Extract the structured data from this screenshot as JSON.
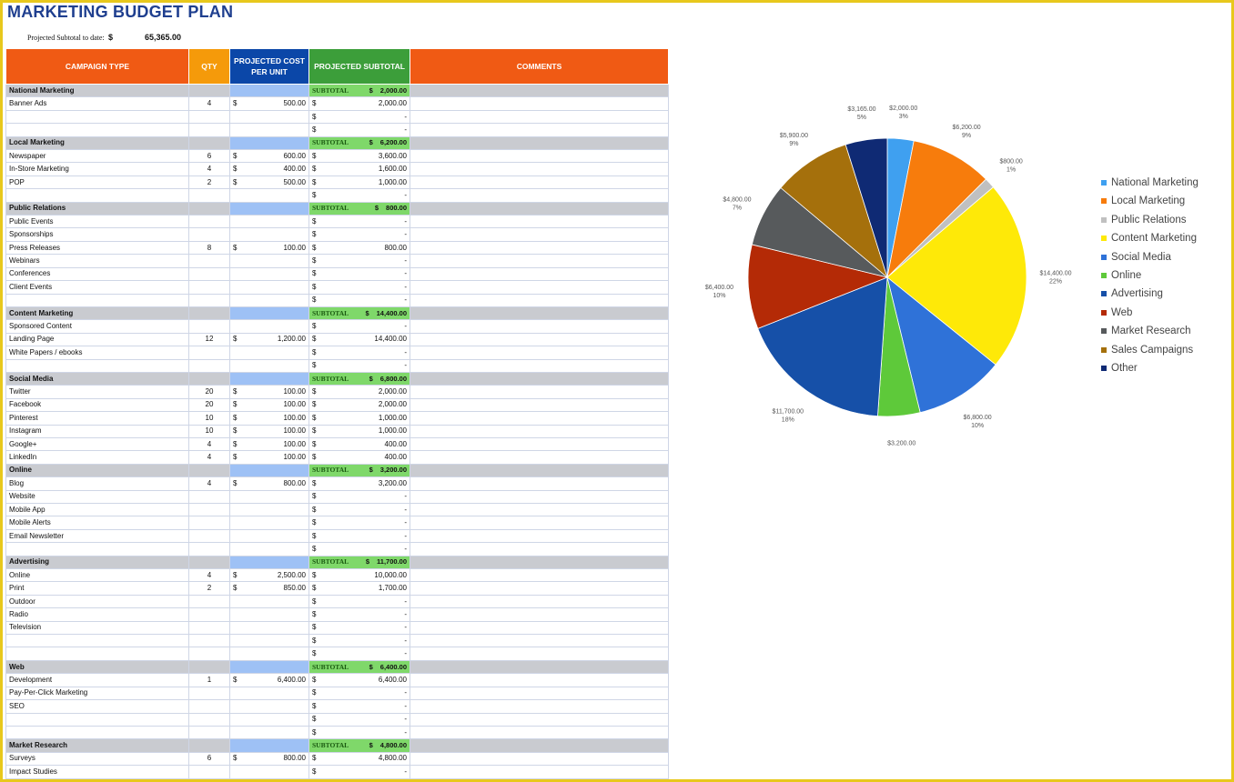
{
  "title": "MARKETING BUDGET PLAN",
  "subtotal_label": "Projected Subtotal to date:",
  "subtotal_dollar": "$",
  "subtotal_value": "65,365.00",
  "headers": {
    "campaign_type": "CAMPAIGN TYPE",
    "qty": "QTY",
    "cost_per_unit": "PROJECTED COST PER UNIT",
    "subtotal": "PROJECTED SUBTOTAL",
    "comments": "COMMENTS"
  },
  "subtotal_tag": "SUBTOTAL",
  "categories": [
    {
      "name": "National Marketing",
      "subtotal": "2,000.00",
      "rows": [
        {
          "item": "Banner Ads",
          "qty": "4",
          "cost": "500.00",
          "total": "2,000.00"
        },
        {
          "item": "",
          "qty": "",
          "cost": "",
          "total": "-"
        },
        {
          "item": "",
          "qty": "",
          "cost": "",
          "total": "-"
        }
      ]
    },
    {
      "name": "Local Marketing",
      "subtotal": "6,200.00",
      "rows": [
        {
          "item": "Newspaper",
          "qty": "6",
          "cost": "600.00",
          "total": "3,600.00"
        },
        {
          "item": "In-Store Marketing",
          "qty": "4",
          "cost": "400.00",
          "total": "1,600.00"
        },
        {
          "item": "POP",
          "qty": "2",
          "cost": "500.00",
          "total": "1,000.00"
        },
        {
          "item": "",
          "qty": "",
          "cost": "",
          "total": "-"
        }
      ]
    },
    {
      "name": "Public Relations",
      "subtotal": "800.00",
      "rows": [
        {
          "item": "Public Events",
          "qty": "",
          "cost": "",
          "total": "-"
        },
        {
          "item": "Sponsorships",
          "qty": "",
          "cost": "",
          "total": "-"
        },
        {
          "item": "Press Releases",
          "qty": "8",
          "cost": "100.00",
          "total": "800.00"
        },
        {
          "item": "Webinars",
          "qty": "",
          "cost": "",
          "total": "-"
        },
        {
          "item": "Conferences",
          "qty": "",
          "cost": "",
          "total": "-"
        },
        {
          "item": "Client Events",
          "qty": "",
          "cost": "",
          "total": "-"
        },
        {
          "item": "",
          "qty": "",
          "cost": "",
          "total": "-"
        }
      ]
    },
    {
      "name": "Content Marketing",
      "subtotal": "14,400.00",
      "rows": [
        {
          "item": "Sponsored Content",
          "qty": "",
          "cost": "",
          "total": "-"
        },
        {
          "item": "Landing Page",
          "qty": "12",
          "cost": "1,200.00",
          "total": "14,400.00"
        },
        {
          "item": "White Papers / ebooks",
          "qty": "",
          "cost": "",
          "total": "-"
        },
        {
          "item": "",
          "qty": "",
          "cost": "",
          "total": "-"
        }
      ]
    },
    {
      "name": "Social Media",
      "subtotal": "6,800.00",
      "rows": [
        {
          "item": "Twitter",
          "qty": "20",
          "cost": "100.00",
          "total": "2,000.00"
        },
        {
          "item": "Facebook",
          "qty": "20",
          "cost": "100.00",
          "total": "2,000.00"
        },
        {
          "item": "Pinterest",
          "qty": "10",
          "cost": "100.00",
          "total": "1,000.00"
        },
        {
          "item": "Instagram",
          "qty": "10",
          "cost": "100.00",
          "total": "1,000.00"
        },
        {
          "item": "Google+",
          "qty": "4",
          "cost": "100.00",
          "total": "400.00"
        },
        {
          "item": "LinkedIn",
          "qty": "4",
          "cost": "100.00",
          "total": "400.00"
        }
      ]
    },
    {
      "name": "Online",
      "subtotal": "3,200.00",
      "rows": [
        {
          "item": "Blog",
          "qty": "4",
          "cost": "800.00",
          "total": "3,200.00"
        },
        {
          "item": "Website",
          "qty": "",
          "cost": "",
          "total": "-"
        },
        {
          "item": "Mobile App",
          "qty": "",
          "cost": "",
          "total": "-"
        },
        {
          "item": "Mobile Alerts",
          "qty": "",
          "cost": "",
          "total": "-"
        },
        {
          "item": "Email Newsletter",
          "qty": "",
          "cost": "",
          "total": "-"
        },
        {
          "item": "",
          "qty": "",
          "cost": "",
          "total": "-"
        }
      ]
    },
    {
      "name": "Advertising",
      "subtotal": "11,700.00",
      "rows": [
        {
          "item": "Online",
          "qty": "4",
          "cost": "2,500.00",
          "total": "10,000.00"
        },
        {
          "item": "Print",
          "qty": "2",
          "cost": "850.00",
          "total": "1,700.00"
        },
        {
          "item": "Outdoor",
          "qty": "",
          "cost": "",
          "total": "-"
        },
        {
          "item": "Radio",
          "qty": "",
          "cost": "",
          "total": "-"
        },
        {
          "item": "Television",
          "qty": "",
          "cost": "",
          "total": "-"
        },
        {
          "item": "",
          "qty": "",
          "cost": "",
          "total": "-"
        },
        {
          "item": "",
          "qty": "",
          "cost": "",
          "total": "-"
        }
      ]
    },
    {
      "name": "Web",
      "subtotal": "6,400.00",
      "rows": [
        {
          "item": "Development",
          "qty": "1",
          "cost": "6,400.00",
          "total": "6,400.00"
        },
        {
          "item": "Pay-Per-Click Marketing",
          "qty": "",
          "cost": "",
          "total": "-"
        },
        {
          "item": "SEO",
          "qty": "",
          "cost": "",
          "total": "-"
        },
        {
          "item": "",
          "qty": "",
          "cost": "",
          "total": "-"
        },
        {
          "item": "",
          "qty": "",
          "cost": "",
          "total": "-"
        }
      ]
    },
    {
      "name": "Market Research",
      "subtotal": "4,800.00",
      "rows": [
        {
          "item": "Surveys",
          "qty": "6",
          "cost": "800.00",
          "total": "4,800.00"
        },
        {
          "item": "Impact Studies",
          "qty": "",
          "cost": "",
          "total": "-"
        }
      ]
    }
  ],
  "chart_data": {
    "type": "pie",
    "title": "",
    "legend_position": "right",
    "slices": [
      {
        "name": "National Marketing",
        "value": 2000,
        "label": "$2,000.00",
        "pct": "3%",
        "color": "#3fa0f0"
      },
      {
        "name": "Local Marketing",
        "value": 6200,
        "label": "$6,200.00",
        "pct": "9%",
        "color": "#f77c0c"
      },
      {
        "name": "Public Relations",
        "value": 800,
        "label": "$800.00",
        "pct": "1%",
        "color": "#c0c0c0"
      },
      {
        "name": "Content Marketing",
        "value": 14400,
        "label": "$14,400.00",
        "pct": "22%",
        "color": "#fee908"
      },
      {
        "name": "Social Media",
        "value": 6800,
        "label": "$6,800.00",
        "pct": "10%",
        "color": "#2f72d8"
      },
      {
        "name": "Online",
        "value": 3200,
        "label": "$3,200.00",
        "pct": "5%",
        "color": "#5ec93a"
      },
      {
        "name": "Advertising",
        "value": 11700,
        "label": "$11,700.00",
        "pct": "18%",
        "color": "#1650a8"
      },
      {
        "name": "Web",
        "value": 6400,
        "label": "$6,400.00",
        "pct": "10%",
        "color": "#b42a06"
      },
      {
        "name": "Market Research",
        "value": 4800,
        "label": "$4,800.00",
        "pct": "7%",
        "color": "#575a5c"
      },
      {
        "name": "Sales Campaigns",
        "value": 5900,
        "label": "$5,900.00",
        "pct": "9%",
        "color": "#a5700c"
      },
      {
        "name": "Other",
        "value": 3165,
        "label": "$3,165.00",
        "pct": "5%",
        "color": "#0f2a74"
      }
    ]
  }
}
